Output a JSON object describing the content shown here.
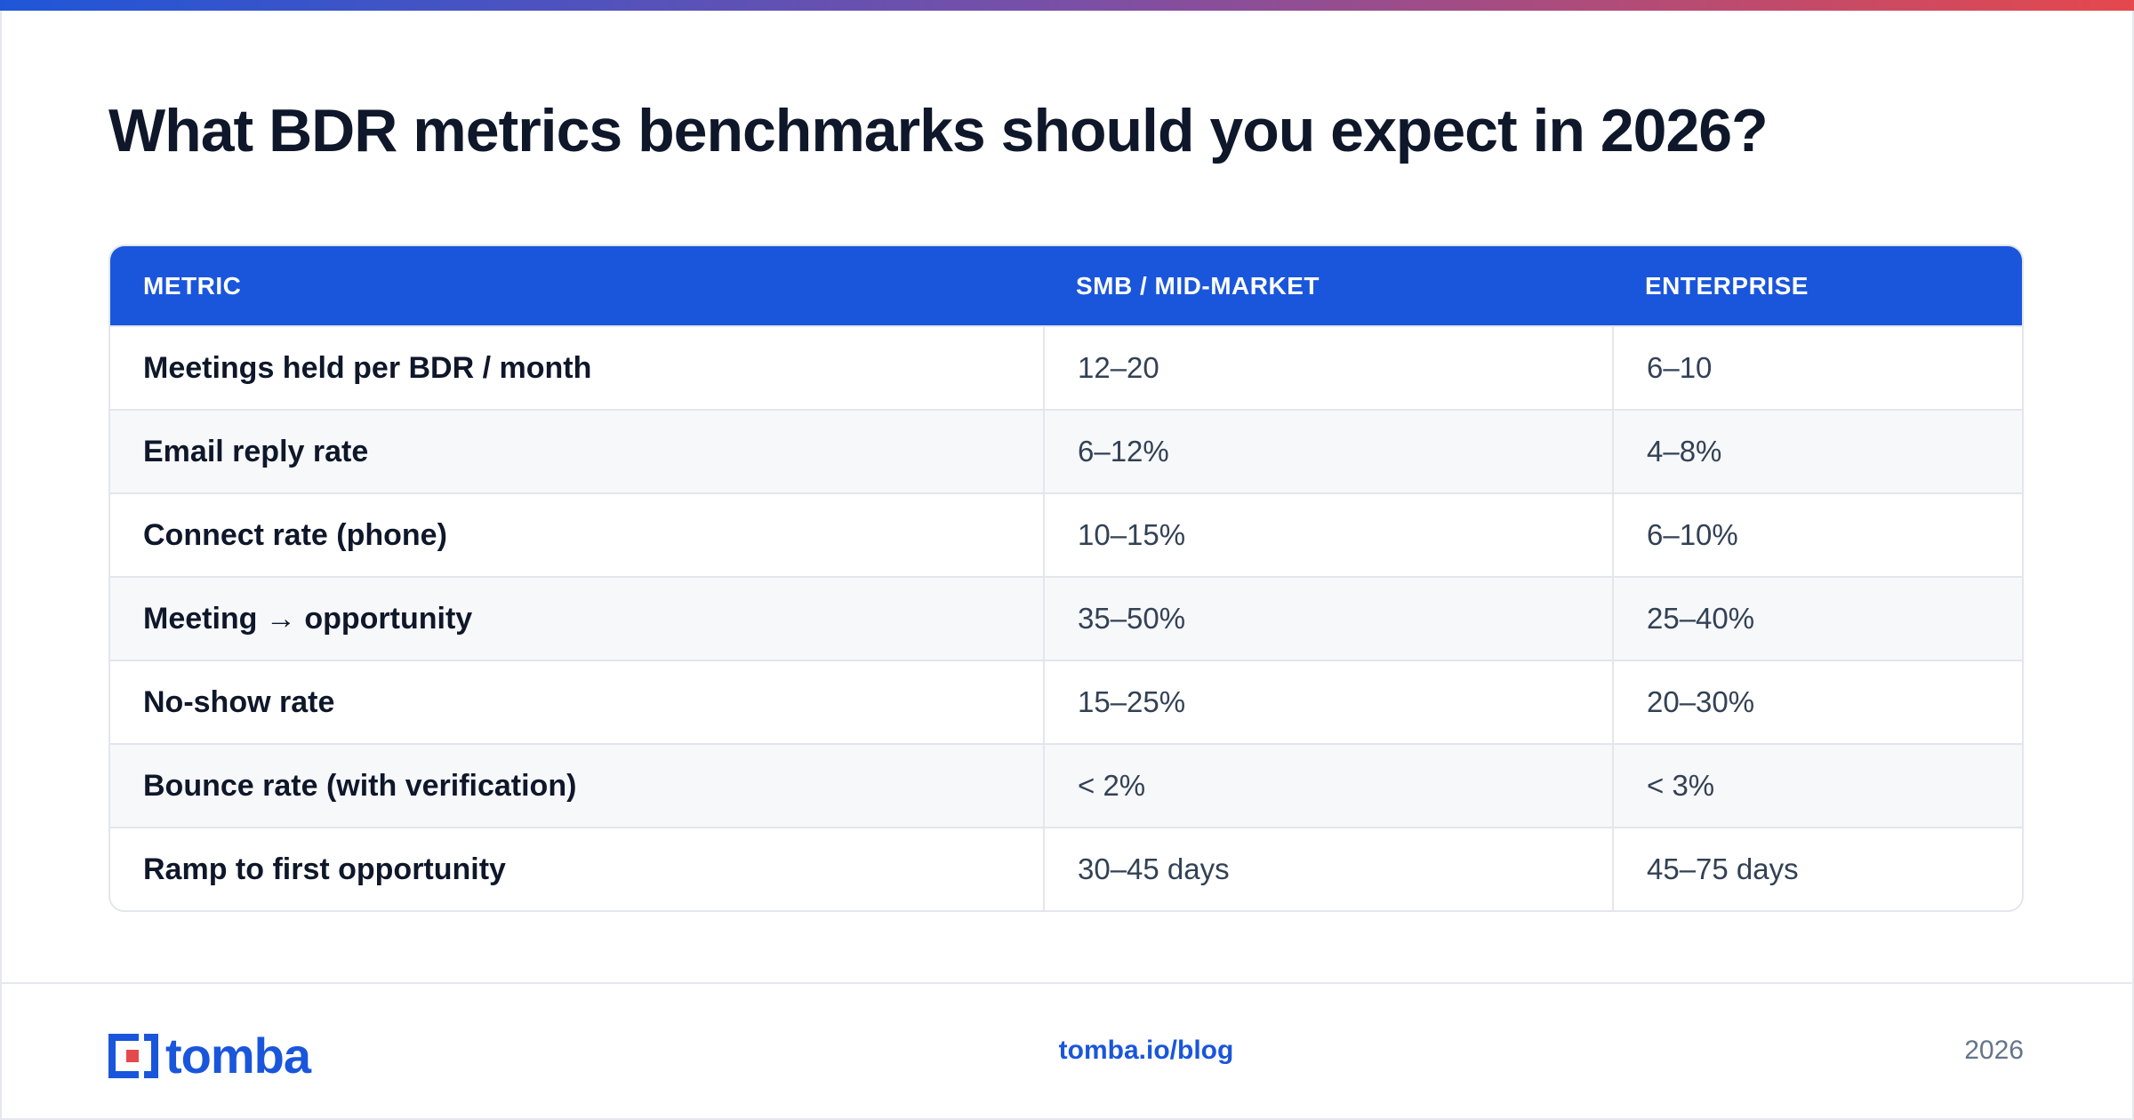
{
  "header": {
    "title": "What BDR metrics benchmarks should you expect in 2026?"
  },
  "table": {
    "columns": [
      "METRIC",
      "SMB / MID-MARKET",
      "ENTERPRISE"
    ],
    "rows": [
      [
        "Meetings held per BDR / month",
        "12–20",
        "6–10"
      ],
      [
        "Email reply rate",
        "6–12%",
        "4–8%"
      ],
      [
        "Connect rate (phone)",
        "10–15%",
        "6–10%"
      ],
      [
        "Meeting → opportunity",
        "35–50%",
        "25–40%"
      ],
      [
        "No-show rate",
        "15–25%",
        "20–30%"
      ],
      [
        "Bounce rate (with verification)",
        "< 2%",
        "< 3%"
      ],
      [
        "Ramp to first opportunity",
        "30–45 days",
        "45–75 days"
      ]
    ]
  },
  "footer": {
    "logo": "tomba",
    "link": "tomba.io/blog",
    "year": "2026"
  }
}
